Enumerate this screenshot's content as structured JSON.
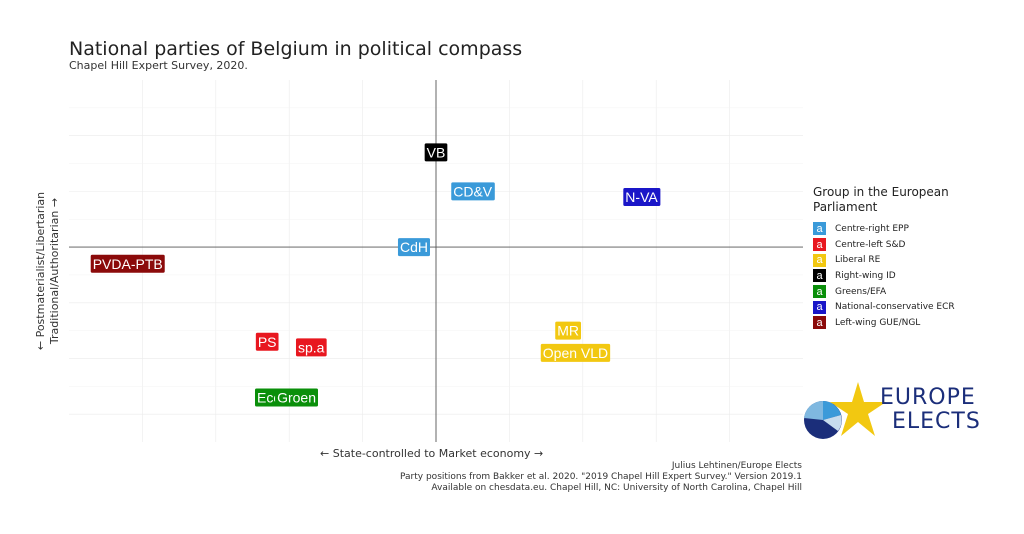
{
  "header": {
    "title": "National parties of Belgium in political compass",
    "subtitle": "Chapel Hill Expert Survey, 2020."
  },
  "chart_data": {
    "type": "scatter",
    "title": "National parties of Belgium in political compass",
    "subtitle": "Chapel Hill Expert Survey, 2020.",
    "xlabel": "← State-controlled to Market economy →",
    "ylabel_lines": [
      "← Postmaterialist/Libertarian",
      "Traditional/Authoritarian →"
    ],
    "xlim": [
      0,
      10
    ],
    "ylim": [
      1.0,
      7.5
    ],
    "grid": true,
    "reference_lines": {
      "x": 5.0,
      "y": 4.5
    },
    "legend_position": "right",
    "legend_title": "Group in the European Parliament",
    "groups": [
      {
        "name": "Centre-right EPP",
        "color": "#3a9ad9"
      },
      {
        "name": "Centre-left S&D",
        "color": "#e8171f"
      },
      {
        "name": "Liberal RE",
        "color": "#f2c811"
      },
      {
        "name": "Right-wing ID",
        "color": "#000000"
      },
      {
        "name": "Greens/EFA",
        "color": "#0a8f0a"
      },
      {
        "name": "National-conservative ECR",
        "color": "#1a16c8"
      },
      {
        "name": "Left-wing GUE/NGL",
        "color": "#8b0a0a"
      }
    ],
    "points": [
      {
        "label": "VB",
        "x": 5.0,
        "y": 6.2,
        "group": "Right-wing ID"
      },
      {
        "label": "CD&V",
        "x": 5.5,
        "y": 5.5,
        "group": "Centre-right EPP"
      },
      {
        "label": "N-VA",
        "x": 7.8,
        "y": 5.4,
        "group": "National-conservative ECR"
      },
      {
        "label": "CdH",
        "x": 4.7,
        "y": 4.5,
        "group": "Centre-right EPP"
      },
      {
        "label": "PVDA-PTB",
        "x": 0.8,
        "y": 4.2,
        "group": "Left-wing GUE/NGL"
      },
      {
        "label": "PS",
        "x": 2.7,
        "y": 2.8,
        "group": "Centre-left S&D"
      },
      {
        "label": "sp.a",
        "x": 3.3,
        "y": 2.7,
        "group": "Centre-left S&D"
      },
      {
        "label": "MR",
        "x": 6.8,
        "y": 3.0,
        "group": "Liberal RE"
      },
      {
        "label": "Open VLD",
        "x": 6.9,
        "y": 2.6,
        "group": "Liberal RE"
      },
      {
        "label": "Ecolo",
        "x": 2.8,
        "y": 1.8,
        "group": "Greens/EFA"
      },
      {
        "label": "Groen",
        "x": 3.1,
        "y": 1.8,
        "group": "Greens/EFA"
      }
    ]
  },
  "caption": {
    "line1": "Julius Lehtinen/Europe Elects",
    "line2": "Party positions from Bakker et al. 2020. \"2019 Chapel Hill Expert Survey.\" Version 2019.1",
    "line3": "Available on chesdata.eu. Chapel Hill, NC: University of North Carolina, Chapel Hill"
  },
  "logo": {
    "line1": "EUROPE",
    "line2": "ELECTS"
  },
  "legend_key_glyph": "a"
}
